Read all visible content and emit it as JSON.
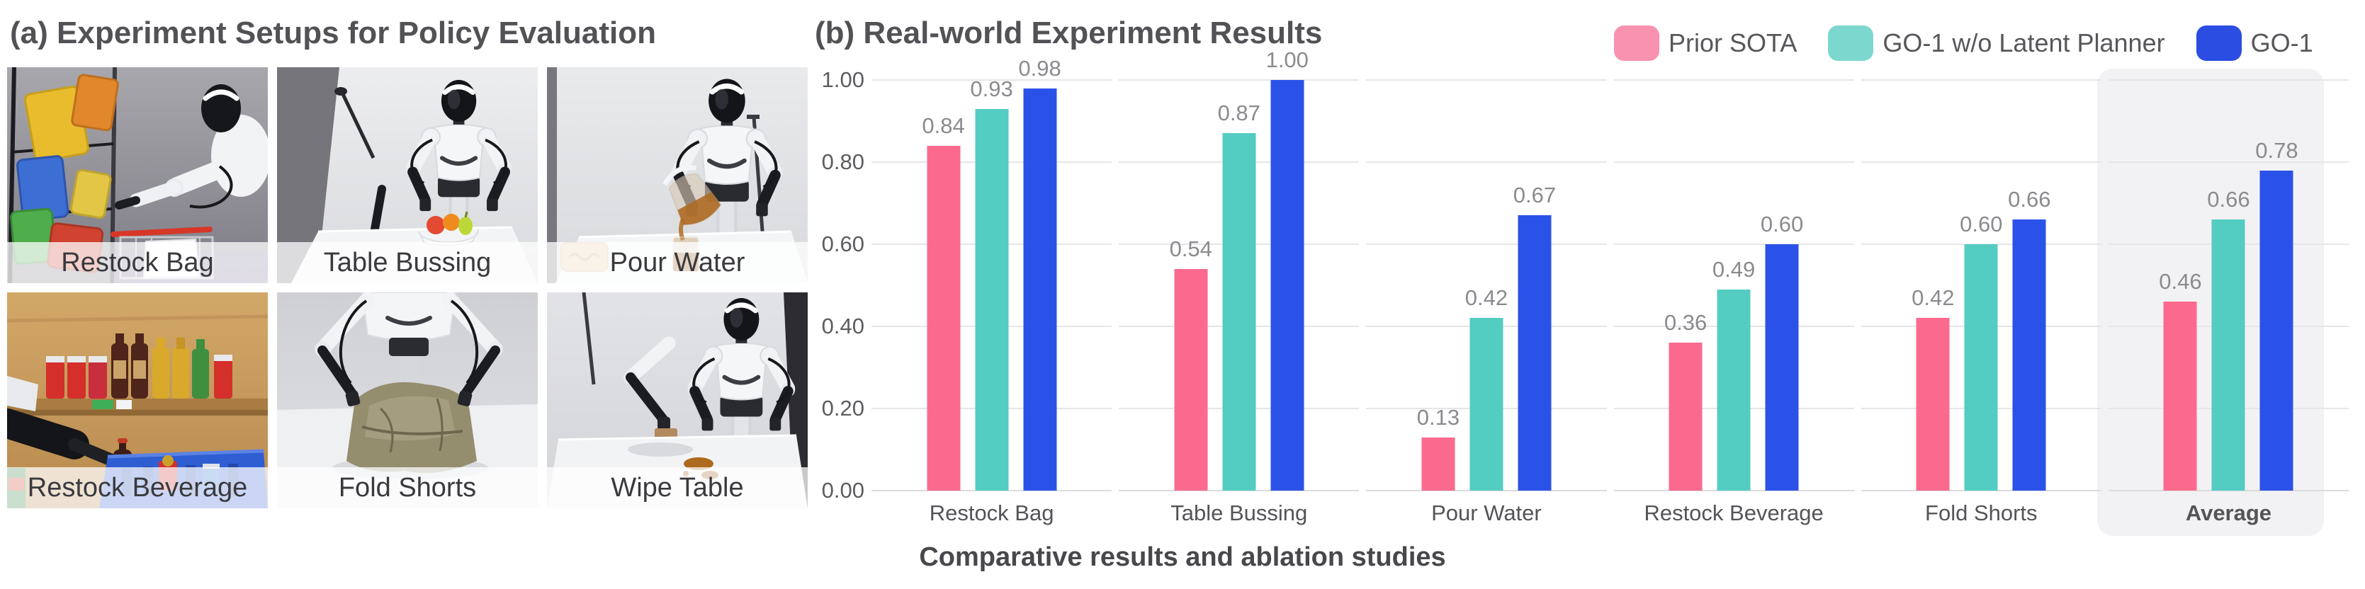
{
  "panel_a": {
    "title": "(a) Experiment Setups for Policy Evaluation",
    "photos": [
      {
        "label": "Restock Bag"
      },
      {
        "label": "Table Bussing"
      },
      {
        "label": "Pour Water"
      },
      {
        "label": "Restock Beverage"
      },
      {
        "label": "Fold Shorts"
      },
      {
        "label": "Wipe Table"
      }
    ]
  },
  "panel_b": {
    "title": "(b) Real-world Experiment Results",
    "caption": "Comparative results and ablation studies",
    "legend": [
      {
        "label": "Prior SOTA",
        "color": "#F992AF"
      },
      {
        "label": "GO-1 w/o Latent Planner",
        "color": "#7CD8CE"
      },
      {
        "label": "GO-1",
        "color": "#2B4DE2"
      }
    ]
  },
  "chart_data": {
    "type": "bar",
    "title": "(b) Real-world Experiment Results",
    "xlabel": "",
    "ylabel": "",
    "categories": [
      "Restock Bag",
      "Table Bussing",
      "Pour Water",
      "Restock Beverage",
      "Fold Shorts",
      "Average"
    ],
    "series": [
      {
        "name": "Prior SOTA",
        "color": "#FB6A8E",
        "values": [
          0.84,
          0.54,
          0.13,
          0.36,
          0.42,
          0.46
        ]
      },
      {
        "name": "GO-1 w/o Latent Planner",
        "color": "#53CCC2",
        "values": [
          0.93,
          0.87,
          0.42,
          0.49,
          0.6,
          0.66
        ]
      },
      {
        "name": "GO-1",
        "color": "#2B52E8",
        "values": [
          0.98,
          1.0,
          0.67,
          0.6,
          0.66,
          0.78
        ]
      }
    ],
    "ylim": [
      0,
      1
    ],
    "yticks": [
      "0.00",
      "0.20",
      "0.40",
      "0.60",
      "0.80",
      "1.00"
    ],
    "grid": "horizontal",
    "legend_position": "top-right",
    "highlight_category": "Average",
    "value_labels": "above bars, two decimals"
  }
}
